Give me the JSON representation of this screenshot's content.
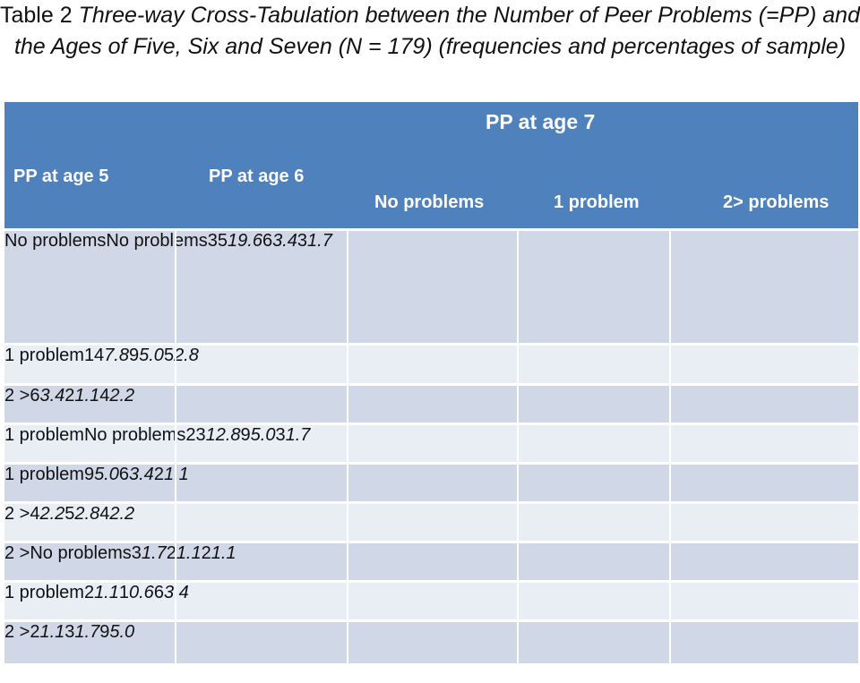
{
  "caption": {
    "lead": "Table 2 ",
    "title": "Three-way Cross-Tabulation between the Number of Peer Problems (=PP) and the Ages of Five, Six and Seven (N = 179) (frequencies and percentages of sample)"
  },
  "header": {
    "age7": "PP at age 7",
    "age5": "PP at age 5",
    "age6": "PP at age 6",
    "col_none": "No problems",
    "col_one": "1 problem",
    "col_two": "2> problems"
  },
  "rows": [
    {
      "a5": "No problems",
      "a6": "No problems",
      "n0": "35",
      "p0": "19.6",
      "n1": "6",
      "p1": "3.4",
      "n2": "3",
      "p2": "1.7"
    },
    {
      "a5": "",
      "a6": "1 problem",
      "n0": "14",
      "p0": "7.8",
      "n1": "9",
      "p1": "5.0",
      "n2": "5",
      "p2": "2.8"
    },
    {
      "a5": "",
      "a6": "2 >",
      "n0": "6",
      "p0": "3.4",
      "n1": "2",
      "p1": "1.1",
      "n2": "4",
      "p2": "2.2"
    },
    {
      "a5": "1 problem",
      "a6": "No problems",
      "n0": "23",
      "p0": "12.8",
      "n1": "9",
      "p1": "5.0",
      "n2": "3",
      "p2": "1.7"
    },
    {
      "a5": "",
      "a6": "1 problem",
      "n0": "9",
      "p0": "5.0",
      "n1": "6",
      "p1": "3.4",
      "n2": "2",
      "p2": "1.1"
    },
    {
      "a5": "",
      "a6": "2 >",
      "n0": "4",
      "p0": "2.2",
      "n1": "5",
      "p1": "2.8",
      "n2": "4",
      "p2": "2.2"
    },
    {
      "a5": "2 >",
      "a6": "No problems",
      "n0": "3",
      "p0": "1.7",
      "n1": "2",
      "p1": "1.1",
      "n2": "2",
      "p2": "1.1"
    },
    {
      "a5": "",
      "a6": "1 problem",
      "n0": "2",
      "p0": "1.1",
      "n1": "1",
      "p1": "0.6",
      "n2": "6",
      "p2": "3.4"
    },
    {
      "a5": "",
      "a6": "2 >",
      "n0": "2",
      "p0": "1.1",
      "n1": "3",
      "p1": "1.7",
      "n2": "9",
      "p2": "5.0"
    }
  ]
}
